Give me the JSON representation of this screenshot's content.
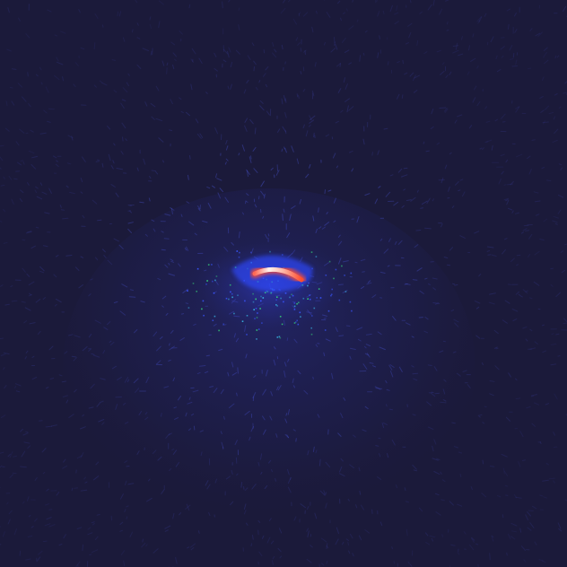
{
  "image": {
    "colors": {
      "background": "#1b1a3a",
      "streak_faint": "#3a3f9e",
      "streak_mid": "#4a56d8",
      "halo": "#2f3cc8",
      "ring": "#3a56ff",
      "speckle_green": "#36d07a",
      "speckle_cyan": "#39b6e6",
      "core_white": "#fff3ee",
      "core_pink": "#ff8a7a",
      "core_red": "#ff4d2e"
    }
  }
}
